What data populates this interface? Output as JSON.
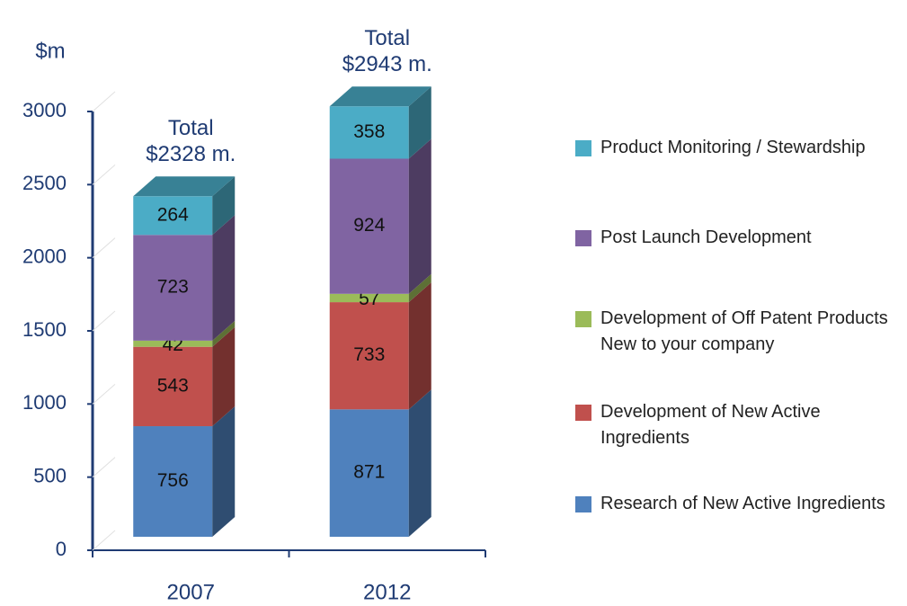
{
  "chart_data": {
    "type": "bar3d_stacked",
    "y_label": "$m",
    "categories": [
      "2007",
      "2012"
    ],
    "series": [
      {
        "name": "Research of New Active Ingredients",
        "color": "#4f81bd",
        "values": [
          756,
          871
        ]
      },
      {
        "name": "Development of New Active Ingredients",
        "color": "#c0504d",
        "values": [
          543,
          733
        ]
      },
      {
        "name": "Development of Off Patent Products New to your company",
        "color": "#9bbb59",
        "values": [
          42,
          57
        ]
      },
      {
        "name": "Post Launch Development",
        "color": "#8064a2",
        "values": [
          723,
          924
        ]
      },
      {
        "name": "Product Monitoring / Stewardship",
        "color": "#4bacc6",
        "values": [
          264,
          358
        ]
      }
    ],
    "annotations": [
      {
        "lines": [
          "Total",
          "$2328 m."
        ]
      },
      {
        "lines": [
          "Total",
          "$2943 m."
        ]
      }
    ],
    "ylim": [
      0,
      3000
    ],
    "yticks": [
      0,
      500,
      1000,
      1500,
      2000,
      2500,
      3000
    ]
  }
}
